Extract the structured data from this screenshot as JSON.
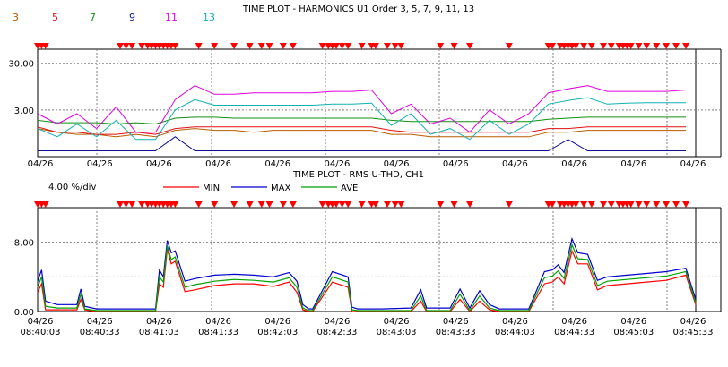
{
  "colors": {
    "h3": "#b85c00",
    "h5": "#e01010",
    "h7": "#109010",
    "h9": "#101090",
    "h11": "#e000e0",
    "h13": "#10b0b0",
    "min": "#ff0000",
    "max": "#0000cc",
    "ave": "#00a000",
    "event_marker": "#ff0000",
    "grid": "#808080",
    "axis": "#000000"
  },
  "chart_data": [
    {
      "type": "line",
      "title": "TIME PLOT - HARMONICS  U1  Order  3,  5,  7,  9, 11, 13",
      "legend": [
        "3",
        "5",
        "7",
        "9",
        "11",
        "13"
      ],
      "y_tick_labels": [
        "30.00",
        "3.00"
      ],
      "y_scale": "log",
      "ylim": [
        0.3,
        60
      ],
      "x_tick_labels": [
        "04/26",
        "04/26",
        "04/26",
        "04/26",
        "04/26",
        "04/26",
        "04/26",
        "04/26",
        "04/26",
        "04/26",
        "04/26",
        "04/26"
      ],
      "x_range_seconds": [
        0,
        335
      ],
      "x": [
        0,
        10,
        20,
        30,
        40,
        50,
        60,
        70,
        80,
        90,
        100,
        110,
        120,
        130,
        140,
        150,
        160,
        170,
        180,
        190,
        200,
        210,
        220,
        230,
        240,
        250,
        260,
        270,
        280,
        290,
        300,
        310,
        320,
        330
      ],
      "series": [
        {
          "name": "3",
          "values": [
            1.2,
            1.0,
            0.9,
            0.9,
            0.8,
            0.9,
            0.8,
            1.1,
            1.2,
            1.1,
            1.1,
            1.0,
            1.1,
            1.1,
            1.1,
            1.1,
            1.1,
            1.1,
            0.9,
            0.9,
            0.8,
            0.8,
            0.8,
            0.8,
            0.8,
            0.8,
            1.0,
            1.0,
            1.1,
            1.1,
            1.1,
            1.1,
            1.1,
            1.1
          ]
        },
        {
          "name": "5",
          "values": [
            1.3,
            1.0,
            1.0,
            0.9,
            0.9,
            1.0,
            0.9,
            1.2,
            1.3,
            1.3,
            1.3,
            1.3,
            1.3,
            1.3,
            1.3,
            1.3,
            1.3,
            1.3,
            1.1,
            1.0,
            1.0,
            1.0,
            1.0,
            1.0,
            1.0,
            1.0,
            1.2,
            1.2,
            1.3,
            1.3,
            1.3,
            1.3,
            1.3,
            1.3
          ]
        },
        {
          "name": "7",
          "values": [
            1.8,
            1.6,
            1.6,
            1.6,
            1.5,
            1.6,
            1.5,
            2.0,
            2.1,
            2.1,
            2.0,
            2.0,
            2.0,
            2.0,
            2.0,
            2.0,
            2.0,
            2.0,
            1.8,
            1.7,
            1.7,
            1.7,
            1.7,
            1.7,
            1.7,
            1.7,
            1.9,
            2.0,
            2.1,
            2.1,
            2.1,
            2.1,
            2.1,
            2.1
          ]
        },
        {
          "name": "9",
          "values": [
            0.4,
            0.4,
            0.4,
            0.4,
            0.4,
            0.4,
            0.4,
            0.8,
            0.4,
            0.4,
            0.4,
            0.4,
            0.4,
            0.4,
            0.4,
            0.4,
            0.4,
            0.4,
            0.4,
            0.4,
            0.4,
            0.4,
            0.4,
            0.4,
            0.4,
            0.4,
            0.4,
            0.7,
            0.4,
            0.4,
            0.4,
            0.4,
            0.4,
            0.4
          ]
        },
        {
          "name": "11",
          "values": [
            2.5,
            1.5,
            2.5,
            1.2,
            3.5,
            1.0,
            1.0,
            5.0,
            10.0,
            6.5,
            6.5,
            7.0,
            7.0,
            7.0,
            7.0,
            7.5,
            7.5,
            8.0,
            2.5,
            4.0,
            1.5,
            2.0,
            1.0,
            3.0,
            1.5,
            2.5,
            7.0,
            8.5,
            10.0,
            7.5,
            7.5,
            7.5,
            7.5,
            8.0
          ]
        },
        {
          "name": "13",
          "values": [
            1.2,
            0.8,
            1.5,
            0.8,
            1.8,
            0.7,
            0.7,
            3.0,
            5.0,
            3.8,
            3.8,
            3.8,
            3.8,
            3.8,
            3.8,
            4.0,
            4.0,
            4.2,
            1.4,
            2.5,
            0.9,
            1.2,
            0.7,
            1.8,
            0.9,
            1.5,
            4.0,
            4.8,
            5.5,
            4.0,
            4.2,
            4.3,
            4.3,
            4.3
          ]
        }
      ],
      "event_markers_x": [
        0,
        2,
        4,
        42,
        45,
        48,
        53,
        56,
        58,
        60,
        62,
        64,
        66,
        68,
        70,
        82,
        90,
        100,
        108,
        114,
        118,
        125,
        130,
        145,
        148,
        150,
        152,
        155,
        158,
        165,
        170,
        172,
        178,
        182,
        185,
        205,
        212,
        220,
        240,
        260,
        262,
        266,
        268,
        270,
        272,
        274,
        278,
        282,
        288,
        292,
        296,
        298,
        300,
        302,
        306,
        310,
        315,
        320,
        325,
        330
      ]
    },
    {
      "type": "line",
      "title": "TIME PLOT - RMS  U-THD, CH1",
      "scale_label": "4.00 %/div",
      "legend": [
        "MIN",
        "MAX",
        "AVE"
      ],
      "y_tick_labels": [
        "8.00",
        "0.00"
      ],
      "ylim": [
        0,
        12
      ],
      "x_tick_labels": [
        [
          "04/26",
          "08:40:03"
        ],
        [
          "04/26",
          "08:40:33"
        ],
        [
          "04/26",
          "08:41:03"
        ],
        [
          "04/26",
          "08:41:33"
        ],
        [
          "04/26",
          "08:42:03"
        ],
        [
          "04/26",
          "08:42:33"
        ],
        [
          "04/26",
          "08:43:03"
        ],
        [
          "04/26",
          "08:43:33"
        ],
        [
          "04/26",
          "08:44:03"
        ],
        [
          "04/26",
          "08:44:33"
        ],
        [
          "04/26",
          "08:45:03"
        ],
        [
          "04/26",
          "08:45:33"
        ]
      ],
      "x_range_seconds": [
        0,
        335
      ],
      "x": [
        0,
        2,
        4,
        10,
        20,
        22,
        24,
        30,
        50,
        55,
        60,
        62,
        64,
        66,
        68,
        70,
        75,
        80,
        90,
        100,
        110,
        120,
        128,
        132,
        135,
        138,
        140,
        150,
        158,
        160,
        163,
        165,
        175,
        190,
        195,
        198,
        200,
        210,
        215,
        220,
        225,
        230,
        235,
        240,
        250,
        258,
        262,
        265,
        268,
        272,
        275,
        280,
        285,
        290,
        300,
        310,
        320,
        330,
        335
      ],
      "series": [
        {
          "name": "MIN",
          "values": [
            2.2,
            3.2,
            0.2,
            0.2,
            0.2,
            1.4,
            0.2,
            0.0,
            0.0,
            0.0,
            0.0,
            3.2,
            2.8,
            7.2,
            5.5,
            5.8,
            2.3,
            2.5,
            3.0,
            3.2,
            3.2,
            2.9,
            3.4,
            2.2,
            0.2,
            0.0,
            0.0,
            3.4,
            2.8,
            0.0,
            0.0,
            0.0,
            0.0,
            0.0,
            1.2,
            0.0,
            0.0,
            0.0,
            1.4,
            0.0,
            1.2,
            0.2,
            0.0,
            0.0,
            0.0,
            3.2,
            3.4,
            4.0,
            3.2,
            7.0,
            5.5,
            5.5,
            2.5,
            3.0,
            3.2,
            3.4,
            3.6,
            4.2,
            0.8
          ]
        },
        {
          "name": "MAX",
          "values": [
            3.5,
            4.8,
            1.2,
            0.8,
            0.8,
            2.6,
            0.6,
            0.3,
            0.3,
            0.3,
            0.3,
            4.8,
            4.0,
            8.2,
            6.8,
            7.0,
            3.5,
            3.8,
            4.2,
            4.3,
            4.2,
            4.0,
            4.5,
            3.5,
            0.8,
            0.3,
            0.3,
            4.6,
            4.0,
            0.5,
            0.3,
            0.3,
            0.3,
            0.4,
            2.5,
            0.4,
            0.4,
            0.4,
            2.6,
            0.4,
            2.4,
            0.8,
            0.3,
            0.3,
            0.3,
            4.6,
            4.8,
            5.4,
            4.5,
            8.4,
            6.8,
            6.6,
            3.6,
            4.0,
            4.2,
            4.4,
            4.6,
            5.0,
            1.4
          ]
        },
        {
          "name": "AVE",
          "values": [
            2.8,
            4.0,
            0.6,
            0.4,
            0.4,
            2.0,
            0.3,
            0.1,
            0.1,
            0.1,
            0.1,
            4.0,
            3.4,
            7.6,
            6.0,
            6.3,
            2.8,
            3.1,
            3.5,
            3.7,
            3.6,
            3.4,
            3.9,
            2.8,
            0.4,
            0.1,
            0.1,
            4.0,
            3.4,
            0.2,
            0.1,
            0.1,
            0.1,
            0.1,
            1.8,
            0.1,
            0.1,
            0.1,
            2.0,
            0.1,
            1.8,
            0.4,
            0.1,
            0.1,
            0.1,
            3.9,
            4.1,
            4.7,
            3.8,
            7.7,
            6.1,
            6.0,
            3.0,
            3.5,
            3.7,
            3.9,
            4.1,
            4.6,
            1.0
          ]
        }
      ],
      "event_markers_x": [
        0,
        2,
        4,
        42,
        45,
        48,
        53,
        56,
        58,
        60,
        62,
        64,
        66,
        68,
        70,
        82,
        90,
        100,
        108,
        114,
        118,
        125,
        130,
        145,
        148,
        150,
        152,
        155,
        158,
        165,
        170,
        172,
        178,
        182,
        185,
        205,
        212,
        220,
        240,
        260,
        262,
        266,
        268,
        270,
        272,
        274,
        278,
        282,
        288,
        292,
        296,
        298,
        300,
        302,
        306,
        310,
        315,
        320,
        325,
        330
      ]
    }
  ]
}
